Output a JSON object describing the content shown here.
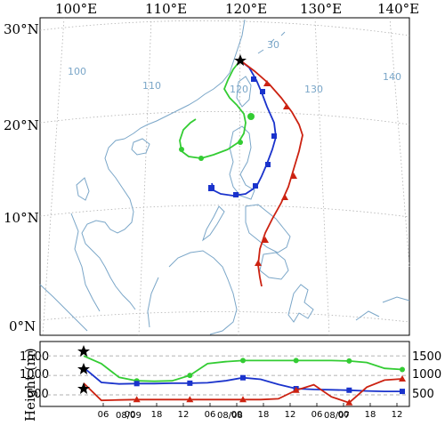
{
  "map": {
    "lon_labels": [
      "100°E",
      "110°E",
      "120°E",
      "130°E",
      "140°E"
    ],
    "lat_labels": [
      "30°N",
      "20°N",
      "10°N",
      "0°N"
    ],
    "grid_numbers": [
      "100",
      "110",
      "120",
      "130",
      "140",
      "30"
    ],
    "colors": {
      "coast": "#7aa6c8",
      "grid": "#b0b0b0",
      "green": "#33cc33",
      "blue": "#1a33cc",
      "red": "#cc2211",
      "star": "#000000"
    }
  },
  "height_panel": {
    "ylabel": "Height (m)",
    "left_ticks": [
      "1500",
      "1000",
      "500"
    ],
    "right_ticks": [
      "1500",
      "1000",
      "500"
    ],
    "time_ticks": [
      "06",
      "00",
      "18",
      "12",
      "06",
      "00",
      "18",
      "12",
      "06",
      "00",
      "18",
      "12"
    ],
    "date_labels": [
      "08/09",
      "08/08",
      "08/07"
    ]
  },
  "chart_data": {
    "type": "line",
    "xlabel": "",
    "ylabel": "Height (m)",
    "ylim": [
      250,
      1800
    ],
    "x_ticks": [
      "06",
      "00",
      "18",
      "12",
      "06",
      "00",
      "18",
      "12",
      "06",
      "00",
      "18",
      "12"
    ],
    "series": [
      {
        "color": "#33cc33",
        "x": [
          0,
          1,
          2,
          3,
          4,
          5,
          6,
          7,
          8,
          9,
          10,
          11,
          12,
          13,
          14,
          15,
          16,
          17,
          18
        ],
        "values": [
          1500,
          1300,
          950,
          860,
          850,
          860,
          1000,
          1300,
          1350,
          1380,
          1380,
          1380,
          1380,
          1380,
          1380,
          1370,
          1330,
          1180,
          1150
        ]
      },
      {
        "color": "#1a33cc",
        "x": [
          0,
          1,
          2,
          3,
          4,
          5,
          6,
          7,
          8,
          9,
          10,
          11,
          12,
          13,
          14,
          15,
          16,
          17,
          18
        ],
        "values": [
          1200,
          820,
          780,
          790,
          790,
          800,
          800,
          810,
          860,
          940,
          900,
          770,
          660,
          640,
          630,
          620,
          600,
          590,
          590
        ]
      },
      {
        "color": "#cc2211",
        "x": [
          0,
          1,
          2,
          3,
          4,
          5,
          6,
          7,
          8,
          9,
          10,
          11,
          12,
          13,
          14,
          15,
          16,
          17,
          18
        ],
        "values": [
          800,
          360,
          370,
          380,
          380,
          380,
          380,
          380,
          380,
          380,
          380,
          400,
          620,
          760,
          450,
          300,
          700,
          880,
          910
        ]
      }
    ]
  }
}
